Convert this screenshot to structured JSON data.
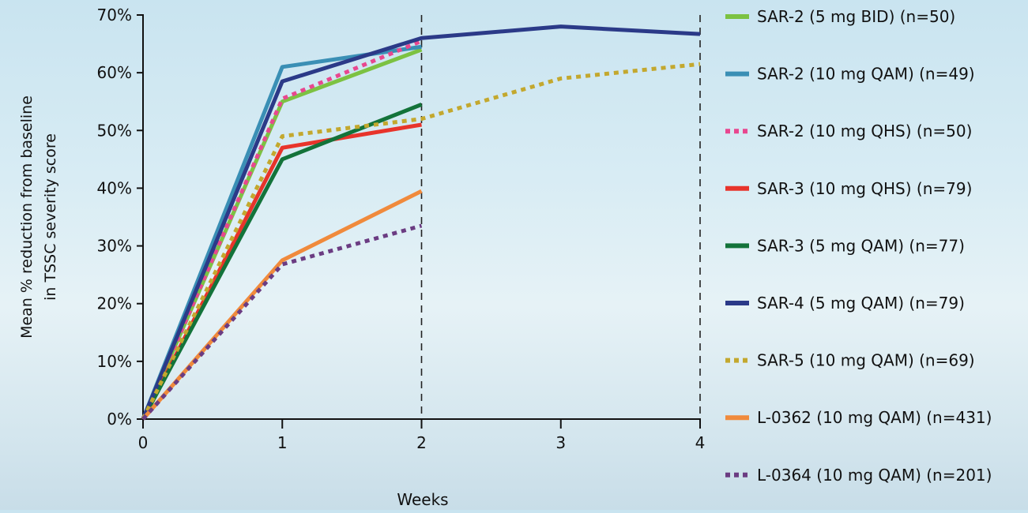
{
  "chart_data": {
    "type": "line",
    "xlabel": "Weeks",
    "ylabel_lines": [
      "Mean % reduction from baseline",
      "in TSSC severity score"
    ],
    "x_ticks": [
      "0",
      "1",
      "2",
      "3",
      "4"
    ],
    "y_ticks": [
      "0%",
      "10%",
      "20%",
      "30%",
      "40%",
      "50%",
      "60%",
      "70%"
    ],
    "xlim": [
      0,
      4
    ],
    "ylim": [
      0,
      70
    ],
    "vlines": [
      2,
      4
    ],
    "legend_position": "right",
    "series": [
      {
        "name": "SAR-2 (5 mg BID) (n=50)",
        "color": "#7cc242",
        "dash": "solid",
        "x": [
          0,
          1,
          2
        ],
        "y": [
          0,
          55,
          64
        ]
      },
      {
        "name": "SAR-2 (10 mg QAM) (n=49)",
        "color": "#3a8fb5",
        "dash": "solid",
        "x": [
          0,
          1,
          2
        ],
        "y": [
          0,
          61,
          64.5
        ]
      },
      {
        "name": "SAR-2 (10 mg QHS) (n=50)",
        "color": "#e8478f",
        "dash": "dotted",
        "x": [
          0,
          1,
          2
        ],
        "y": [
          0,
          55.5,
          65.5
        ]
      },
      {
        "name": "SAR-3 (10 mg QHS) (n=79)",
        "color": "#e8342b",
        "dash": "solid",
        "x": [
          0,
          1,
          2
        ],
        "y": [
          0,
          47,
          51
        ]
      },
      {
        "name": "SAR-3 (5 mg QAM) (n=77)",
        "color": "#13733a",
        "dash": "solid",
        "x": [
          0,
          1,
          2
        ],
        "y": [
          0,
          45,
          54.5
        ]
      },
      {
        "name": "SAR-4 (5 mg QAM) (n=79)",
        "color": "#2b3a88",
        "dash": "solid",
        "x": [
          0,
          1,
          2,
          3,
          4
        ],
        "y": [
          0,
          58.5,
          66,
          68,
          66.7
        ]
      },
      {
        "name": "SAR-5 (10 mg QAM) (n=69)",
        "color": "#c3a82e",
        "dash": "dotted",
        "x": [
          0,
          1,
          2,
          3,
          4
        ],
        "y": [
          0,
          49,
          52,
          59,
          61.5
        ]
      },
      {
        "name": "L-0362 (10 mg QAM) (n=431)",
        "color": "#f08a3c",
        "dash": "solid",
        "x": [
          0,
          1,
          2
        ],
        "y": [
          0,
          27.5,
          39.5
        ]
      },
      {
        "name": "L-0364 (10 mg QAM) (n=201)",
        "color": "#6b3c82",
        "dash": "dotted",
        "x": [
          0,
          1,
          2
        ],
        "y": [
          0,
          26.8,
          33.5
        ]
      }
    ]
  }
}
